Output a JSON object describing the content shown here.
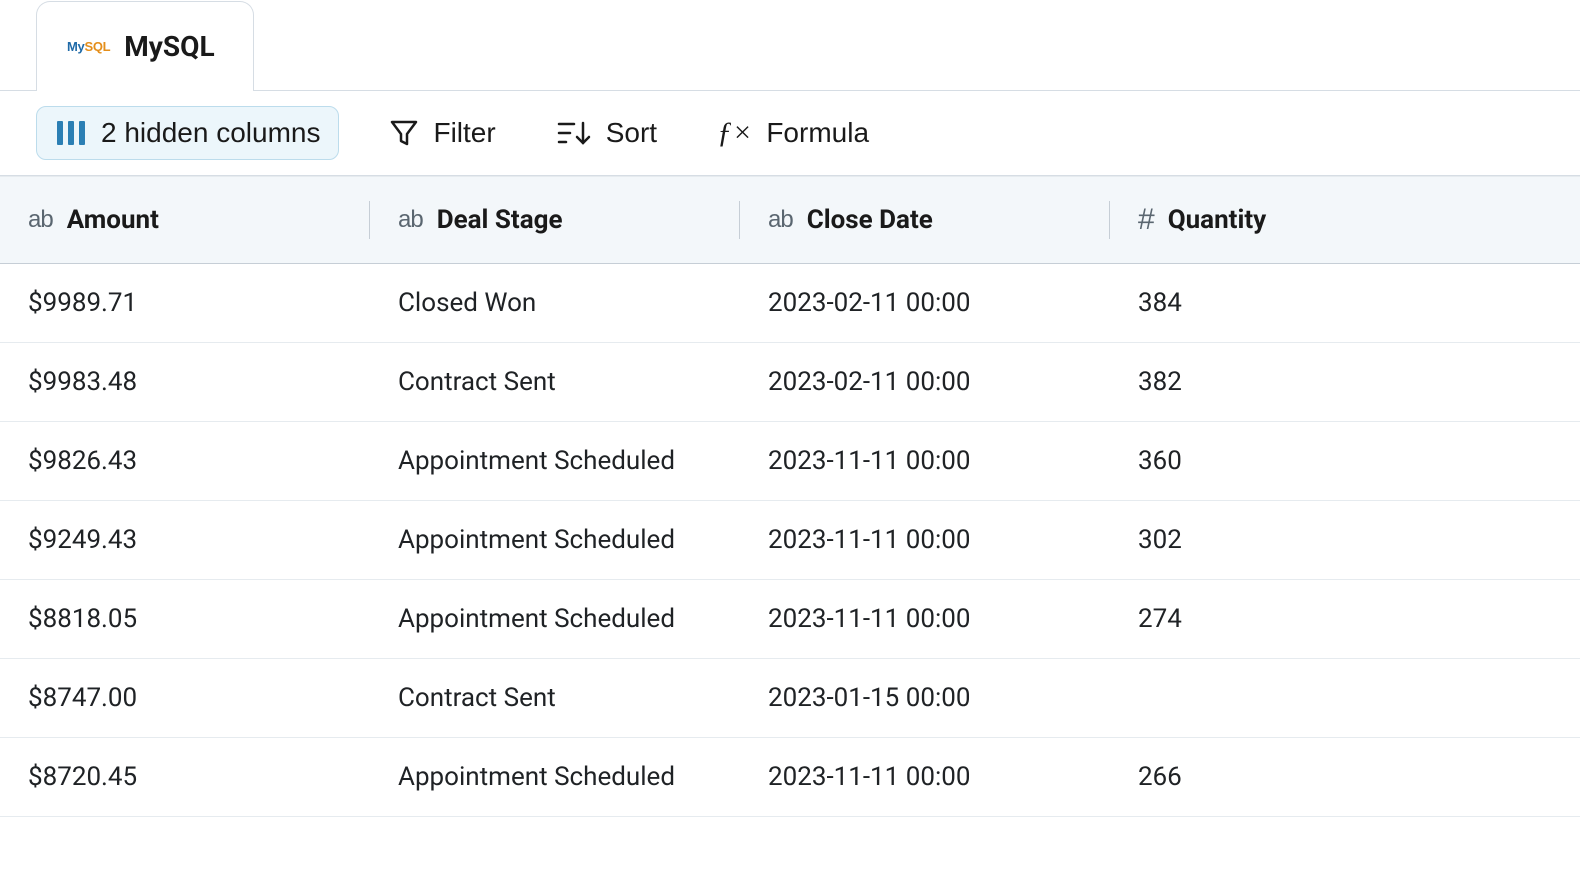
{
  "tab": {
    "label": "MySQL",
    "logo_parts": {
      "my": "My",
      "sql": "SQL"
    }
  },
  "toolbar": {
    "hidden_columns_label": "2 hidden columns",
    "filter_label": "Filter",
    "sort_label": "Sort",
    "formula_label": "Formula"
  },
  "colors": {
    "accent": "#2b7fb4",
    "accent_bg": "#ecf6fb",
    "accent_border": "#bcdcec",
    "header_bg": "#f3f7fa",
    "divider": "#c6ced6",
    "row_border": "#e6ebef",
    "text": "#1a1a1a",
    "muted": "#5a6670",
    "mysql_blue": "#1f6aa8",
    "mysql_orange": "#e48e1a"
  },
  "table": {
    "columns": [
      {
        "key": "amount",
        "label": "Amount",
        "type": "text"
      },
      {
        "key": "deal_stage",
        "label": "Deal Stage",
        "type": "text"
      },
      {
        "key": "close_date",
        "label": "Close Date",
        "type": "text"
      },
      {
        "key": "quantity",
        "label": "Quantity",
        "type": "number"
      }
    ],
    "type_glyphs": {
      "text": "ab",
      "number": "#"
    },
    "rows": [
      {
        "amount": "$9989.71",
        "deal_stage": "Closed Won",
        "close_date": "2023-02-11 00:00",
        "quantity": "384"
      },
      {
        "amount": "$9983.48",
        "deal_stage": "Contract Sent",
        "close_date": "2023-02-11 00:00",
        "quantity": "382"
      },
      {
        "amount": "$9826.43",
        "deal_stage": "Appointment Scheduled",
        "close_date": "2023-11-11 00:00",
        "quantity": "360"
      },
      {
        "amount": "$9249.43",
        "deal_stage": "Appointment Scheduled",
        "close_date": "2023-11-11 00:00",
        "quantity": "302"
      },
      {
        "amount": "$8818.05",
        "deal_stage": "Appointment Scheduled",
        "close_date": "2023-11-11 00:00",
        "quantity": "274"
      },
      {
        "amount": "$8747.00",
        "deal_stage": "Contract Sent",
        "close_date": "2023-01-15 00:00",
        "quantity": ""
      },
      {
        "amount": "$8720.45",
        "deal_stage": "Appointment Scheduled",
        "close_date": "2023-11-11 00:00",
        "quantity": "266"
      }
    ]
  }
}
